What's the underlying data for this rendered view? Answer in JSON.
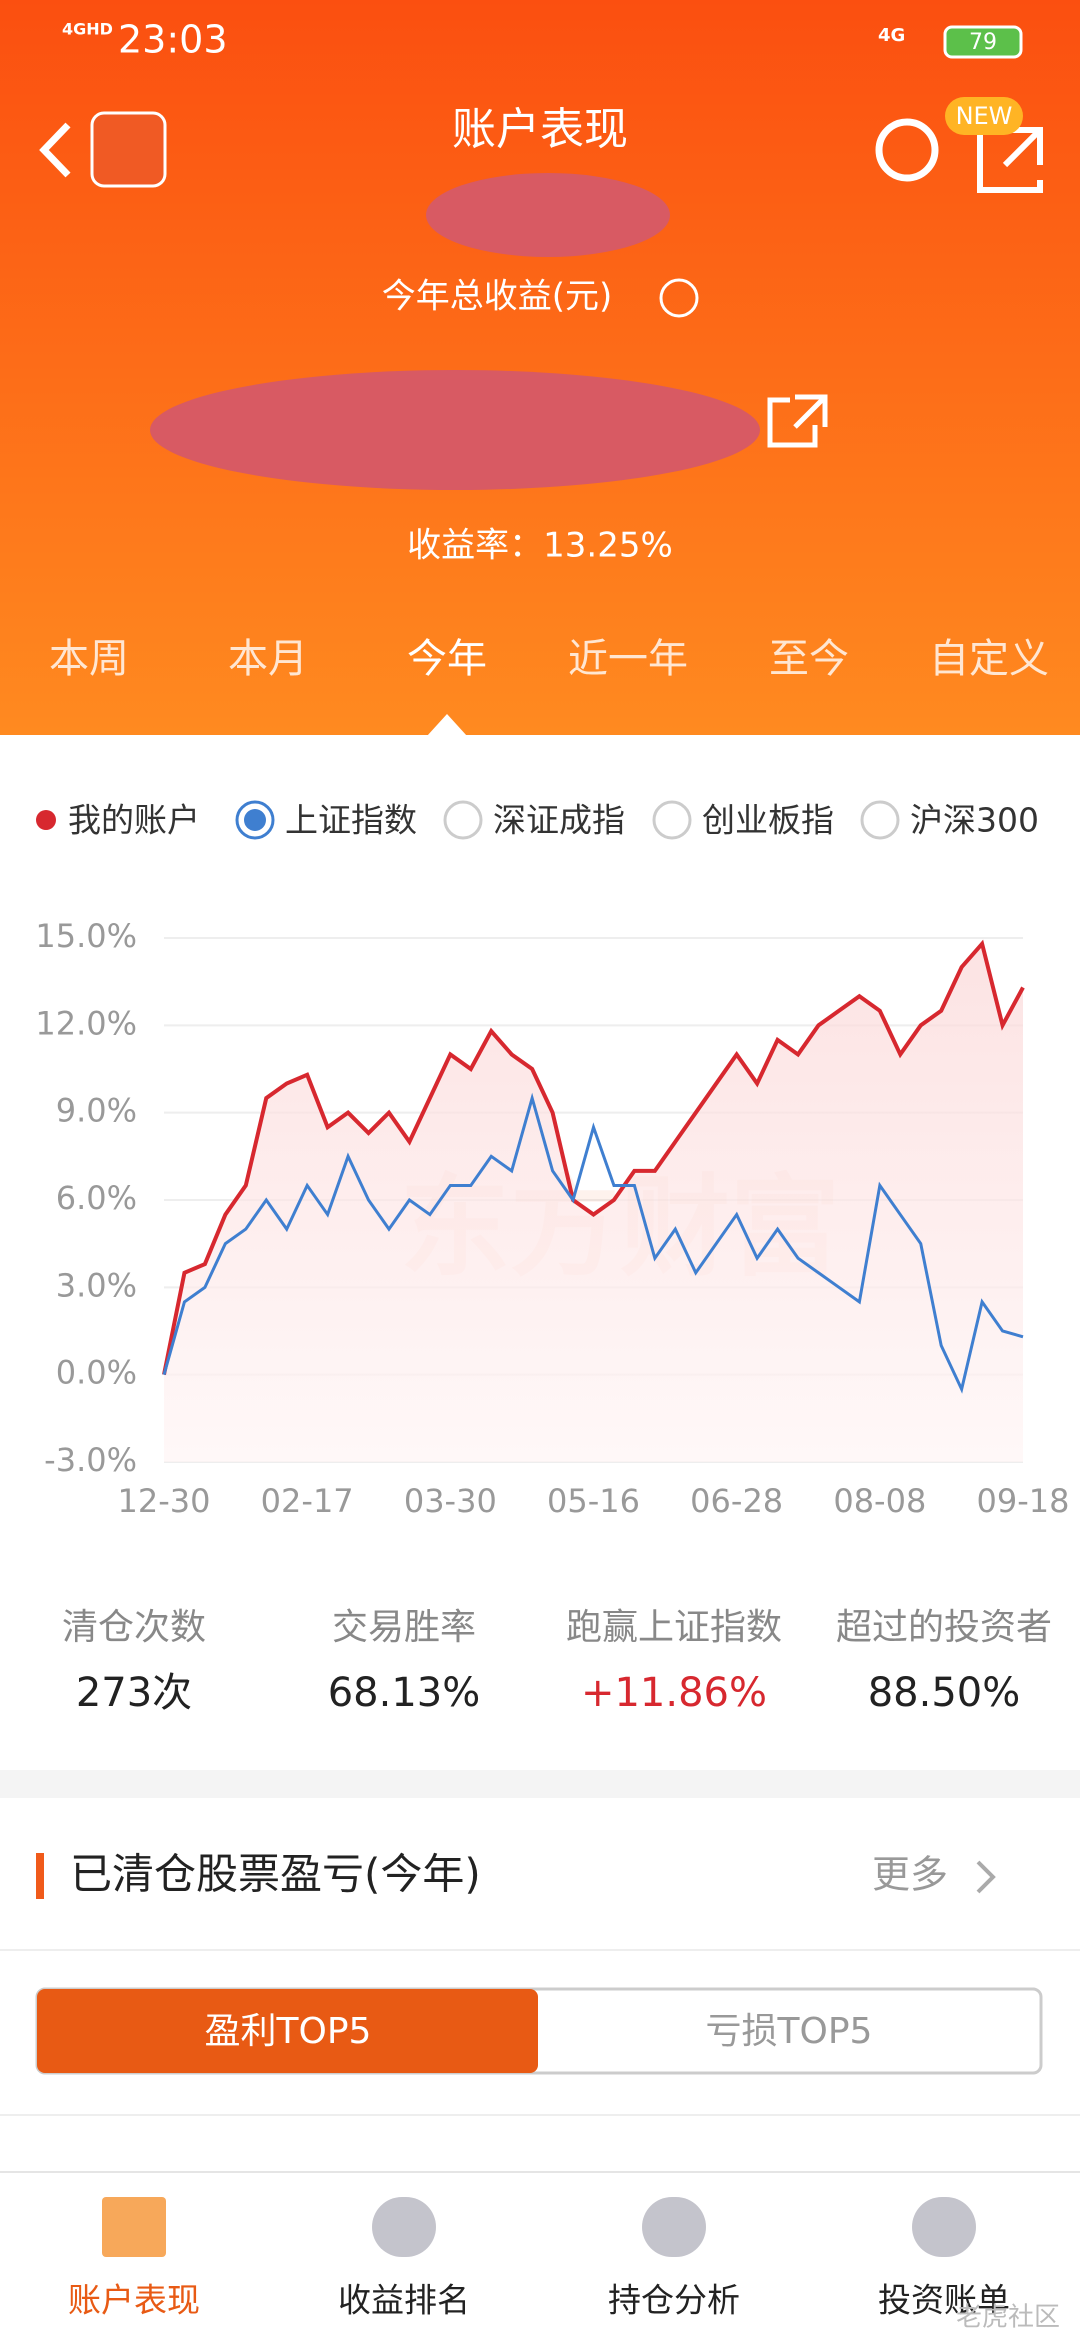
{
  "status_bar": {
    "network": "4GHD",
    "time": "23:03",
    "signal": "4G",
    "battery": "79"
  },
  "header": {
    "title": "账户表现",
    "badge": "NEW"
  },
  "summary": {
    "label": "今年总收益(元)",
    "yield_text": "收益率：13.25%"
  },
  "tabs": {
    "items": [
      "本周",
      "本月",
      "今年",
      "近一年",
      "至今",
      "自定义"
    ],
    "active": 2
  },
  "legend_options": {
    "items": [
      "我的账户",
      "上证指数",
      "深证成指",
      "创业板指",
      "沪深300"
    ],
    "selected": 1
  },
  "chart_data": {
    "type": "line",
    "watermark": "东方财富",
    "categories": [
      "12-30",
      null,
      null,
      null,
      null,
      null,
      null,
      "02-17",
      null,
      null,
      null,
      null,
      null,
      null,
      "03-30",
      null,
      null,
      null,
      null,
      null,
      null,
      "05-16",
      null,
      null,
      null,
      null,
      null,
      null,
      "06-28",
      null,
      null,
      null,
      null,
      null,
      null,
      "08-08",
      null,
      null,
      null,
      null,
      null,
      null,
      "09-18"
    ],
    "series": [
      {
        "name": "我的账户",
        "color": "#d7282f",
        "values": [
          0,
          3.5,
          3.8,
          5.5,
          6.5,
          9.5,
          10,
          10.3,
          8.5,
          9,
          8.3,
          9,
          8,
          9.5,
          11,
          10.5,
          11.8,
          11,
          10.5,
          9,
          6,
          5.5,
          6,
          7,
          7,
          8,
          9,
          10,
          11,
          10,
          11.5,
          11,
          12,
          12.5,
          13,
          12.5,
          11,
          12,
          12.5,
          14,
          14.8,
          12,
          13.3
        ]
      },
      {
        "name": "上证指数",
        "color": "#3f7fd0",
        "values": [
          0,
          2.5,
          3,
          4.5,
          5,
          6,
          5,
          6.5,
          5.5,
          7.5,
          6,
          5,
          6,
          5.5,
          6.5,
          6.5,
          7.5,
          7,
          9.5,
          7,
          6,
          8.5,
          6.5,
          6.5,
          4,
          5,
          3.5,
          4.5,
          5.5,
          4,
          5,
          4,
          3.5,
          3,
          2.5,
          6.5,
          5.5,
          4.5,
          1,
          -0.5,
          2.5,
          1.5,
          1.3
        ]
      }
    ],
    "ylim": [
      -3,
      15
    ],
    "yticks": [
      {
        "value": -3,
        "label": "-3.0%"
      },
      {
        "value": 0,
        "label": "0.0%"
      },
      {
        "value": 3,
        "label": "3.0%"
      },
      {
        "value": 6,
        "label": "6.0%"
      },
      {
        "value": 9,
        "label": "9.0%"
      },
      {
        "value": 12,
        "label": "12.0%"
      },
      {
        "value": 15,
        "label": "15.0%"
      }
    ],
    "grid": true
  },
  "stats": [
    {
      "label": "清仓次数",
      "value": "273次"
    },
    {
      "label": "交易胜率",
      "value": "68.13%"
    },
    {
      "label": "跑赢上证指数",
      "value": "+11.86%"
    },
    {
      "label": "超过的投资者",
      "value": "88.50%"
    }
  ],
  "section": {
    "title": "已清仓股票盈亏(今年)",
    "more": "更多"
  },
  "toggle": {
    "items": [
      "盈利TOP5",
      "亏损TOP5"
    ],
    "active": 0
  },
  "bottom_nav": {
    "items": [
      "账户表现",
      "收益排名",
      "持仓分析",
      "投资账单"
    ],
    "active": 0
  },
  "watermark": "老虎社区"
}
